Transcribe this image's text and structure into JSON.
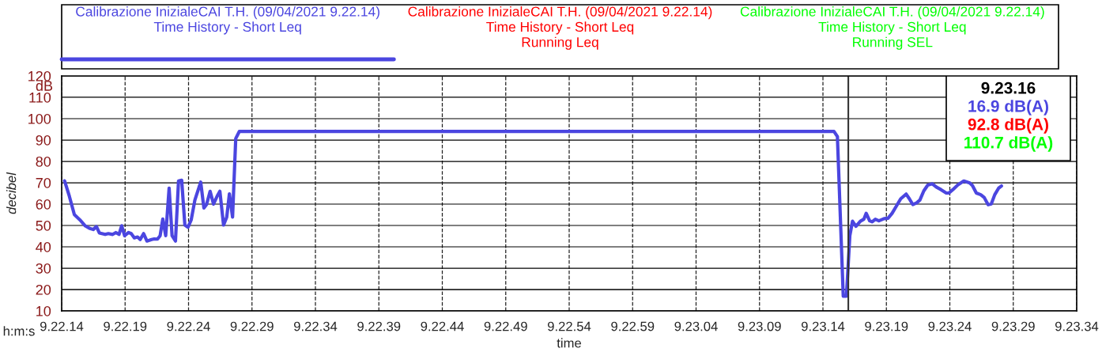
{
  "chart_data": {
    "type": "line",
    "xlabel": "time",
    "ylabel": "decibel",
    "x": [
      "2021-04-09T09:22:14.23",
      "2021-04-09T09:22:14.60",
      "2021-04-09T09:22:15.00",
      "2021-04-09T09:22:15.44",
      "2021-04-09T09:22:15.86",
      "2021-04-09T09:22:16.18",
      "2021-04-09T09:22:16.49",
      "2021-04-09T09:22:16.74",
      "2021-04-09T09:22:16.97",
      "2021-04-09T09:22:17.43",
      "2021-04-09T09:22:17.68",
      "2021-04-09T09:22:18.02",
      "2021-04-09T09:22:18.27",
      "2021-04-09T09:22:18.52",
      "2021-04-09T09:22:18.73",
      "2021-04-09T09:22:18.96",
      "2021-04-09T09:22:19.27",
      "2021-04-09T09:22:19.48",
      "2021-04-09T09:22:19.73",
      "2021-04-09T09:22:19.98",
      "2021-04-09T09:22:20.19",
      "2021-04-09T09:22:20.46",
      "2021-04-09T09:22:20.72",
      "2021-04-09T09:22:21.09",
      "2021-04-09T09:22:21.30",
      "2021-04-09T09:22:21.55",
      "2021-04-09T09:22:21.76",
      "2021-04-09T09:22:21.97",
      "2021-04-09T09:22:22.20",
      "2021-04-09T09:22:22.47",
      "2021-04-09T09:22:22.70",
      "2021-04-09T09:22:22.97",
      "2021-04-09T09:22:23.21",
      "2021-04-09T09:22:23.46",
      "2021-04-09T09:22:23.71",
      "2021-04-09T09:22:23.96",
      "2021-04-09T09:22:24.21",
      "2021-04-09T09:22:24.50",
      "2021-04-09T09:22:24.96",
      "2021-04-09T09:22:25.21",
      "2021-04-09T09:22:25.42",
      "2021-04-09T09:22:25.70",
      "2021-04-09T09:22:25.97",
      "2021-04-09T09:22:26.26",
      "2021-04-09T09:22:26.47",
      "2021-04-09T09:22:26.76",
      "2021-04-09T09:22:27.01",
      "2021-04-09T09:22:27.22",
      "2021-04-09T09:22:27.47",
      "2021-04-09T09:22:27.72",
      "2021-04-09T09:22:28.00",
      "2021-04-09T09:23:14.87",
      "2021-04-09T09:23:15.14",
      "2021-04-09T09:23:15.60",
      "2021-04-09T09:23:15.85",
      "2021-04-09T09:23:16.12",
      "2021-04-09T09:23:16.33",
      "2021-04-09T09:23:16.60",
      "2021-04-09T09:23:16.95",
      "2021-04-09T09:23:17.22",
      "2021-04-09T09:23:17.41",
      "2021-04-09T09:23:17.68",
      "2021-04-09T09:23:17.88",
      "2021-04-09T09:23:18.13",
      "2021-04-09T09:23:18.41",
      "2021-04-09T09:23:18.82",
      "2021-04-09T09:23:19.13",
      "2021-04-09T09:23:19.45",
      "2021-04-09T09:23:19.76",
      "2021-04-09T09:23:20.13",
      "2021-04-09T09:23:20.56",
      "2021-04-09T09:23:20.81",
      "2021-04-09T09:23:21.08",
      "2021-04-09T09:23:21.39",
      "2021-04-09T09:23:21.64",
      "2021-04-09T09:23:21.95",
      "2021-04-09T09:23:22.26",
      "2021-04-09T09:23:22.62",
      "2021-04-09T09:23:22.93",
      "2021-04-09T09:23:23.30",
      "2021-04-09T09:23:23.72",
      "2021-04-09T09:23:23.93",
      "2021-04-09T09:23:24.24",
      "2021-04-09T09:23:24.63",
      "2021-04-09T09:23:25.10",
      "2021-04-09T09:23:25.57",
      "2021-04-09T09:23:25.78",
      "2021-04-09T09:23:26.09",
      "2021-04-09T09:23:26.44",
      "2021-04-09T09:23:26.71",
      "2021-04-09T09:23:27.02",
      "2021-04-09T09:23:27.27",
      "2021-04-09T09:23:27.54",
      "2021-04-09T09:23:27.85",
      "2021-04-09T09:23:28.07"
    ],
    "series": [
      {
        "name": "Calibrazione InizialeCAI T.H. (09/04/2021 9.22.14)\nTime History - Short Leq",
        "color": "#4b46e0",
        "values": [
          70.9,
          63.8,
          55.1,
          52.6,
          49.8,
          48.7,
          48.1,
          49.5,
          46.5,
          45.8,
          46.2,
          45.8,
          46.7,
          45.8,
          49.9,
          45.2,
          46.7,
          46.2,
          44.2,
          44.6,
          43.4,
          46.2,
          42.7,
          43.4,
          43.7,
          43.6,
          45.2,
          53.0,
          45.2,
          67.5,
          45.2,
          42.7,
          70.8,
          71.2,
          50.2,
          49.2,
          52.6,
          61.9,
          70.3,
          58.2,
          59.8,
          66.0,
          60.0,
          63.8,
          66.0,
          50.2,
          53.9,
          64.8,
          53.9,
          90.7,
          94.0,
          94.0,
          91.6,
          16.9,
          16.9,
          45.2,
          52.0,
          49.6,
          52.0,
          52.9,
          55.7,
          52.2,
          51.7,
          52.9,
          52.2,
          53.2,
          53.4,
          55.7,
          58.8,
          62.5,
          64.7,
          62.5,
          59.8,
          60.6,
          61.9,
          66.2,
          68.9,
          69.5,
          68.0,
          66.8,
          65.2,
          65.2,
          66.8,
          69.0,
          70.8,
          69.9,
          68.7,
          65.2,
          64.4,
          63.1,
          59.7,
          60.1,
          64.4,
          67.5,
          68.5
        ]
      },
      {
        "name": "Calibrazione InizialeCAI T.H. (09/04/2021 9.22.14)\nTime History - Short Leq\nRunning Leq",
        "color": "#ff0000",
        "values": [
          null,
          null,
          null,
          null,
          null,
          null,
          null,
          null,
          null,
          null,
          null,
          null,
          null,
          null,
          null,
          null,
          null,
          null,
          null,
          null,
          null,
          null,
          null,
          null,
          null,
          null,
          null,
          null,
          null,
          null,
          null,
          null,
          null,
          null,
          null,
          null,
          null,
          null,
          null,
          null,
          null,
          null,
          null,
          null,
          null,
          null,
          null,
          null,
          null,
          null,
          null,
          null,
          null,
          null,
          null,
          null,
          null,
          null,
          null,
          null,
          null,
          null,
          null,
          null,
          null,
          null,
          null,
          null,
          null,
          null,
          null,
          null,
          null,
          null,
          null,
          null,
          null,
          null,
          null,
          null,
          null,
          null,
          null,
          null,
          null,
          null,
          null,
          null,
          null,
          null,
          null,
          null,
          null,
          null,
          null
        ]
      },
      {
        "name": "Calibrazione InizialeCAI T.H. (09/04/2021 9.22.14)\nTime History - Short Leq\nRunning SEL",
        "color": "#00ff00",
        "values": [
          null,
          null,
          null,
          null,
          null,
          null,
          null,
          null,
          null,
          null,
          null,
          null,
          null,
          null,
          null,
          null,
          null,
          null,
          null,
          null,
          null,
          null,
          null,
          null,
          null,
          null,
          null,
          null,
          null,
          null,
          null,
          null,
          null,
          null,
          null,
          null,
          null,
          null,
          null,
          null,
          null,
          null,
          null,
          null,
          null,
          null,
          null,
          null,
          null,
          null,
          null,
          null,
          null,
          null,
          null,
          null,
          null,
          null,
          null,
          null,
          null,
          null,
          null,
          null,
          null,
          null,
          null,
          null,
          null,
          null,
          null,
          null,
          null,
          null,
          null,
          null,
          null,
          null,
          null,
          null,
          null,
          null,
          null,
          null,
          null,
          null,
          null,
          null,
          null,
          null,
          null,
          null,
          null,
          null,
          null
        ]
      }
    ],
    "xlim": [
      "2021-04-09T09:22:14",
      "2021-04-09T09:23:34"
    ],
    "xticks": [
      {
        "value": "2021-04-09T09:22:14",
        "label": "9.22.14"
      },
      {
        "value": "2021-04-09T09:22:19",
        "label": "9.22.19"
      },
      {
        "value": "2021-04-09T09:22:24",
        "label": "9.22.24"
      },
      {
        "value": "2021-04-09T09:22:29",
        "label": "9.22.29"
      },
      {
        "value": "2021-04-09T09:22:34",
        "label": "9.22.34"
      },
      {
        "value": "2021-04-09T09:22:39",
        "label": "9.22.39"
      },
      {
        "value": "2021-04-09T09:22:44",
        "label": "9.22.44"
      },
      {
        "value": "2021-04-09T09:22:49",
        "label": "9.22.49"
      },
      {
        "value": "2021-04-09T09:22:54",
        "label": "9.22.54"
      },
      {
        "value": "2021-04-09T09:22:59",
        "label": "9.22.59"
      },
      {
        "value": "2021-04-09T09:23:04",
        "label": "9.23.04"
      },
      {
        "value": "2021-04-09T09:23:09",
        "label": "9.23.09"
      },
      {
        "value": "2021-04-09T09:23:14",
        "label": "9.23.14"
      },
      {
        "value": "2021-04-09T09:23:19",
        "label": "9.23.19"
      },
      {
        "value": "2021-04-09T09:23:24",
        "label": "9.23.24"
      },
      {
        "value": "2021-04-09T09:23:29",
        "label": "9.23.29"
      },
      {
        "value": "2021-04-09T09:23:34",
        "label": "9.23.34"
      }
    ],
    "ylim": [
      10,
      120
    ],
    "yticks": [
      10,
      20,
      30,
      40,
      50,
      60,
      70,
      80,
      90,
      100,
      110,
      120
    ],
    "ref_lines": [
      {
        "axis": "x",
        "value": "2021-04-09T09:23:16",
        "color": "#333333",
        "line_style": "solid"
      }
    ],
    "annotations": [
      "9.23.16",
      "16.9 dB(A)",
      "92.8 dB(A)",
      "110.7 dB(A)",
      "dB",
      "h:m:s"
    ],
    "grid": true,
    "legend": "top",
    "line_style": "solid"
  }
}
